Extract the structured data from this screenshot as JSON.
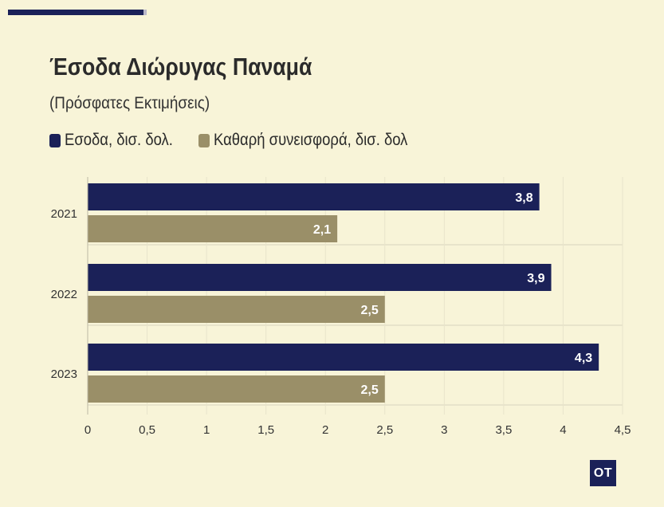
{
  "chart_data": {
    "type": "bar",
    "orientation": "horizontal",
    "title": "Έσοδα Διώρυγας Παναμά",
    "subtitle": "(Πρόσφατες Εκτιμήσεις)",
    "categories": [
      "2021",
      "2022",
      "2023"
    ],
    "series": [
      {
        "name": "Εσοδα, δισ. δολ.",
        "values": [
          3.8,
          3.9,
          4.3
        ],
        "labels": [
          "3,8",
          "3,9",
          "4,3"
        ],
        "color": "#1b2158"
      },
      {
        "name": "Καθαρή συνεισφορά, δισ. δολ",
        "values": [
          2.1,
          2.5,
          2.5
        ],
        "labels": [
          "2,1",
          "2,5",
          "2,5"
        ],
        "color": "#9a8f68"
      }
    ],
    "xlim": [
      0,
      4.5
    ],
    "x_ticks": [
      0,
      0.5,
      1,
      1.5,
      2,
      2.5,
      3,
      3.5,
      4,
      4.5
    ],
    "x_tick_labels": [
      "0",
      "0,5",
      "1",
      "1,5",
      "2",
      "2,5",
      "3",
      "3,5",
      "4",
      "4,5"
    ],
    "grid": "vertical",
    "legend_position": "top-left"
  },
  "logo": {
    "text": "OT"
  }
}
